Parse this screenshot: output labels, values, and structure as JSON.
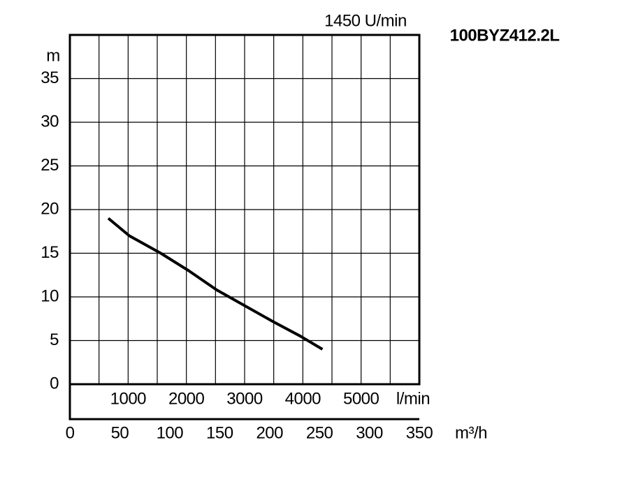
{
  "chart_data": {
    "type": "line",
    "title": "100BYZ412.2L",
    "subtitle": "1450 U/min",
    "y_label": "m",
    "x_label": "m³/h",
    "x2_label": "l/min",
    "x": [
      38.5,
      59.5,
      91,
      119,
      147,
      175,
      203,
      231,
      253
    ],
    "values": [
      19.0,
      17.0,
      15.0,
      13.0,
      10.8,
      9.0,
      7.2,
      5.5,
      4.0
    ],
    "color": "#000000",
    "xlim": [
      0,
      350
    ],
    "xticks": [
      0,
      50,
      100,
      150,
      200,
      250,
      300,
      350
    ],
    "x2lim": [
      0,
      6000
    ],
    "x2ticks": [
      {
        "value": 500,
        "label": null
      },
      1000,
      {
        "value": 1500,
        "label": null
      },
      2000,
      {
        "value": 2500,
        "label": null
      },
      3000,
      {
        "value": 3500,
        "label": null
      },
      4000,
      {
        "value": 4500,
        "label": null
      },
      5000,
      {
        "value": 5500,
        "label": null
      }
    ],
    "ylim": [
      0,
      40
    ],
    "yticks": [
      0,
      5,
      10,
      15,
      20,
      25,
      30,
      35
    ],
    "grid": true
  }
}
